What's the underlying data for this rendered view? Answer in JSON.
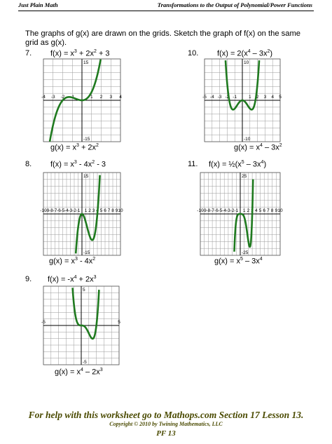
{
  "header": {
    "left": "Just Plain Math",
    "right": "Transformations to the Output of Polynomial/Power Functions"
  },
  "instructions": "The graphs of g(x) are drawn on the grids.  Sketch the graph of f(x) on the same grid as g(x).",
  "problems": [
    {
      "number": "7.",
      "f_parts": [
        "f(x) = x",
        "3",
        " + 2x",
        "2",
        " + 3"
      ],
      "g_parts": [
        "g(x) = x",
        "3",
        " + 2x",
        "2",
        ""
      ],
      "graph": {
        "xlim": [
          -4,
          4
        ],
        "ylim": [
          -15,
          15
        ],
        "grid_cells": [
          8,
          12
        ],
        "x_tick_labels": [
          "-4",
          "-3",
          "-2",
          "-1",
          "1",
          "2",
          "3",
          "4"
        ],
        "y_tick_labels": [
          "15",
          "-15"
        ]
      },
      "curve_color": "#1f7a1f"
    },
    {
      "number": "10.",
      "f_parts": [
        "f(x) = 2(x",
        "4",
        " – 3x",
        "2",
        ")"
      ],
      "g_parts": [
        "g(x) = x",
        "4",
        " – 3x",
        "2",
        ""
      ],
      "graph": {
        "xlim": [
          -5,
          5
        ],
        "ylim": [
          -10,
          10
        ],
        "grid_cells": [
          10,
          12
        ],
        "x_tick_labels": [
          "-5",
          "-4",
          "-3",
          "-2",
          "-1",
          "1",
          "2",
          "3",
          "4",
          "5"
        ],
        "y_tick_labels": [
          "10",
          "-10"
        ]
      },
      "curve_color": "#1f7a1f"
    },
    {
      "number": "8.",
      "f_parts": [
        "f(x) = x",
        "3",
        " - 4x",
        "2",
        " - 3"
      ],
      "g_parts": [
        "g(x) = x",
        "3",
        " - 4x",
        "2",
        ""
      ],
      "graph": {
        "xlim": [
          -10,
          10
        ],
        "ylim": [
          -15,
          15
        ],
        "grid_cells": [
          20,
          12
        ],
        "x_tick_labels": [
          "-10",
          "-9",
          "-8",
          "-7",
          "-6",
          "-5",
          "-4",
          "-3",
          "-2",
          "-1",
          "1",
          "2",
          "3",
          "4",
          "5",
          "6",
          "7",
          "8",
          "9",
          "10"
        ],
        "y_tick_labels": [
          "15",
          "-15"
        ]
      },
      "curve_color": "#1f7a1f"
    },
    {
      "number": "11.",
      "f_parts": [
        "f(x) = ½(x",
        "5",
        " – 3x",
        "4",
        ")"
      ],
      "g_parts": [
        "g(x) = x",
        "5",
        " – 3x",
        "4",
        ""
      ],
      "graph": {
        "xlim": [
          -10,
          10
        ],
        "ylim": [
          -25,
          25
        ],
        "grid_cells": [
          20,
          12
        ],
        "x_tick_labels": [
          "-10",
          "-9",
          "-8",
          "-7",
          "-6",
          "-5",
          "-4",
          "-3",
          "-2",
          "-1",
          "1",
          "2",
          "3",
          "4",
          "5",
          "6",
          "7",
          "8",
          "9",
          "10"
        ],
        "y_tick_labels": [
          "25",
          "-25"
        ]
      },
      "curve_color": "#1f7a1f"
    },
    {
      "number": "9.",
      "f_parts": [
        "f(x) = -x",
        "4",
        " + 2x",
        "3",
        ""
      ],
      "g_parts": [
        "g(x) = x",
        "4",
        " – 2x",
        "3",
        ""
      ],
      "graph": {
        "xlim": [
          -5,
          5
        ],
        "ylim": [
          -5,
          5
        ],
        "grid_cells": [
          10,
          12
        ],
        "x_tick_labels": [
          "-5",
          "5"
        ],
        "y_tick_labels": [
          "5",
          "-5"
        ]
      },
      "curve_color": "#1f7a1f"
    }
  ],
  "footer": {
    "help": "For help with this worksheet go to Mathops.com Section 17 Lesson 13.",
    "copyright": "Copyright © 2010 by Twining Mathematics, LLC",
    "page": "PF 13"
  }
}
